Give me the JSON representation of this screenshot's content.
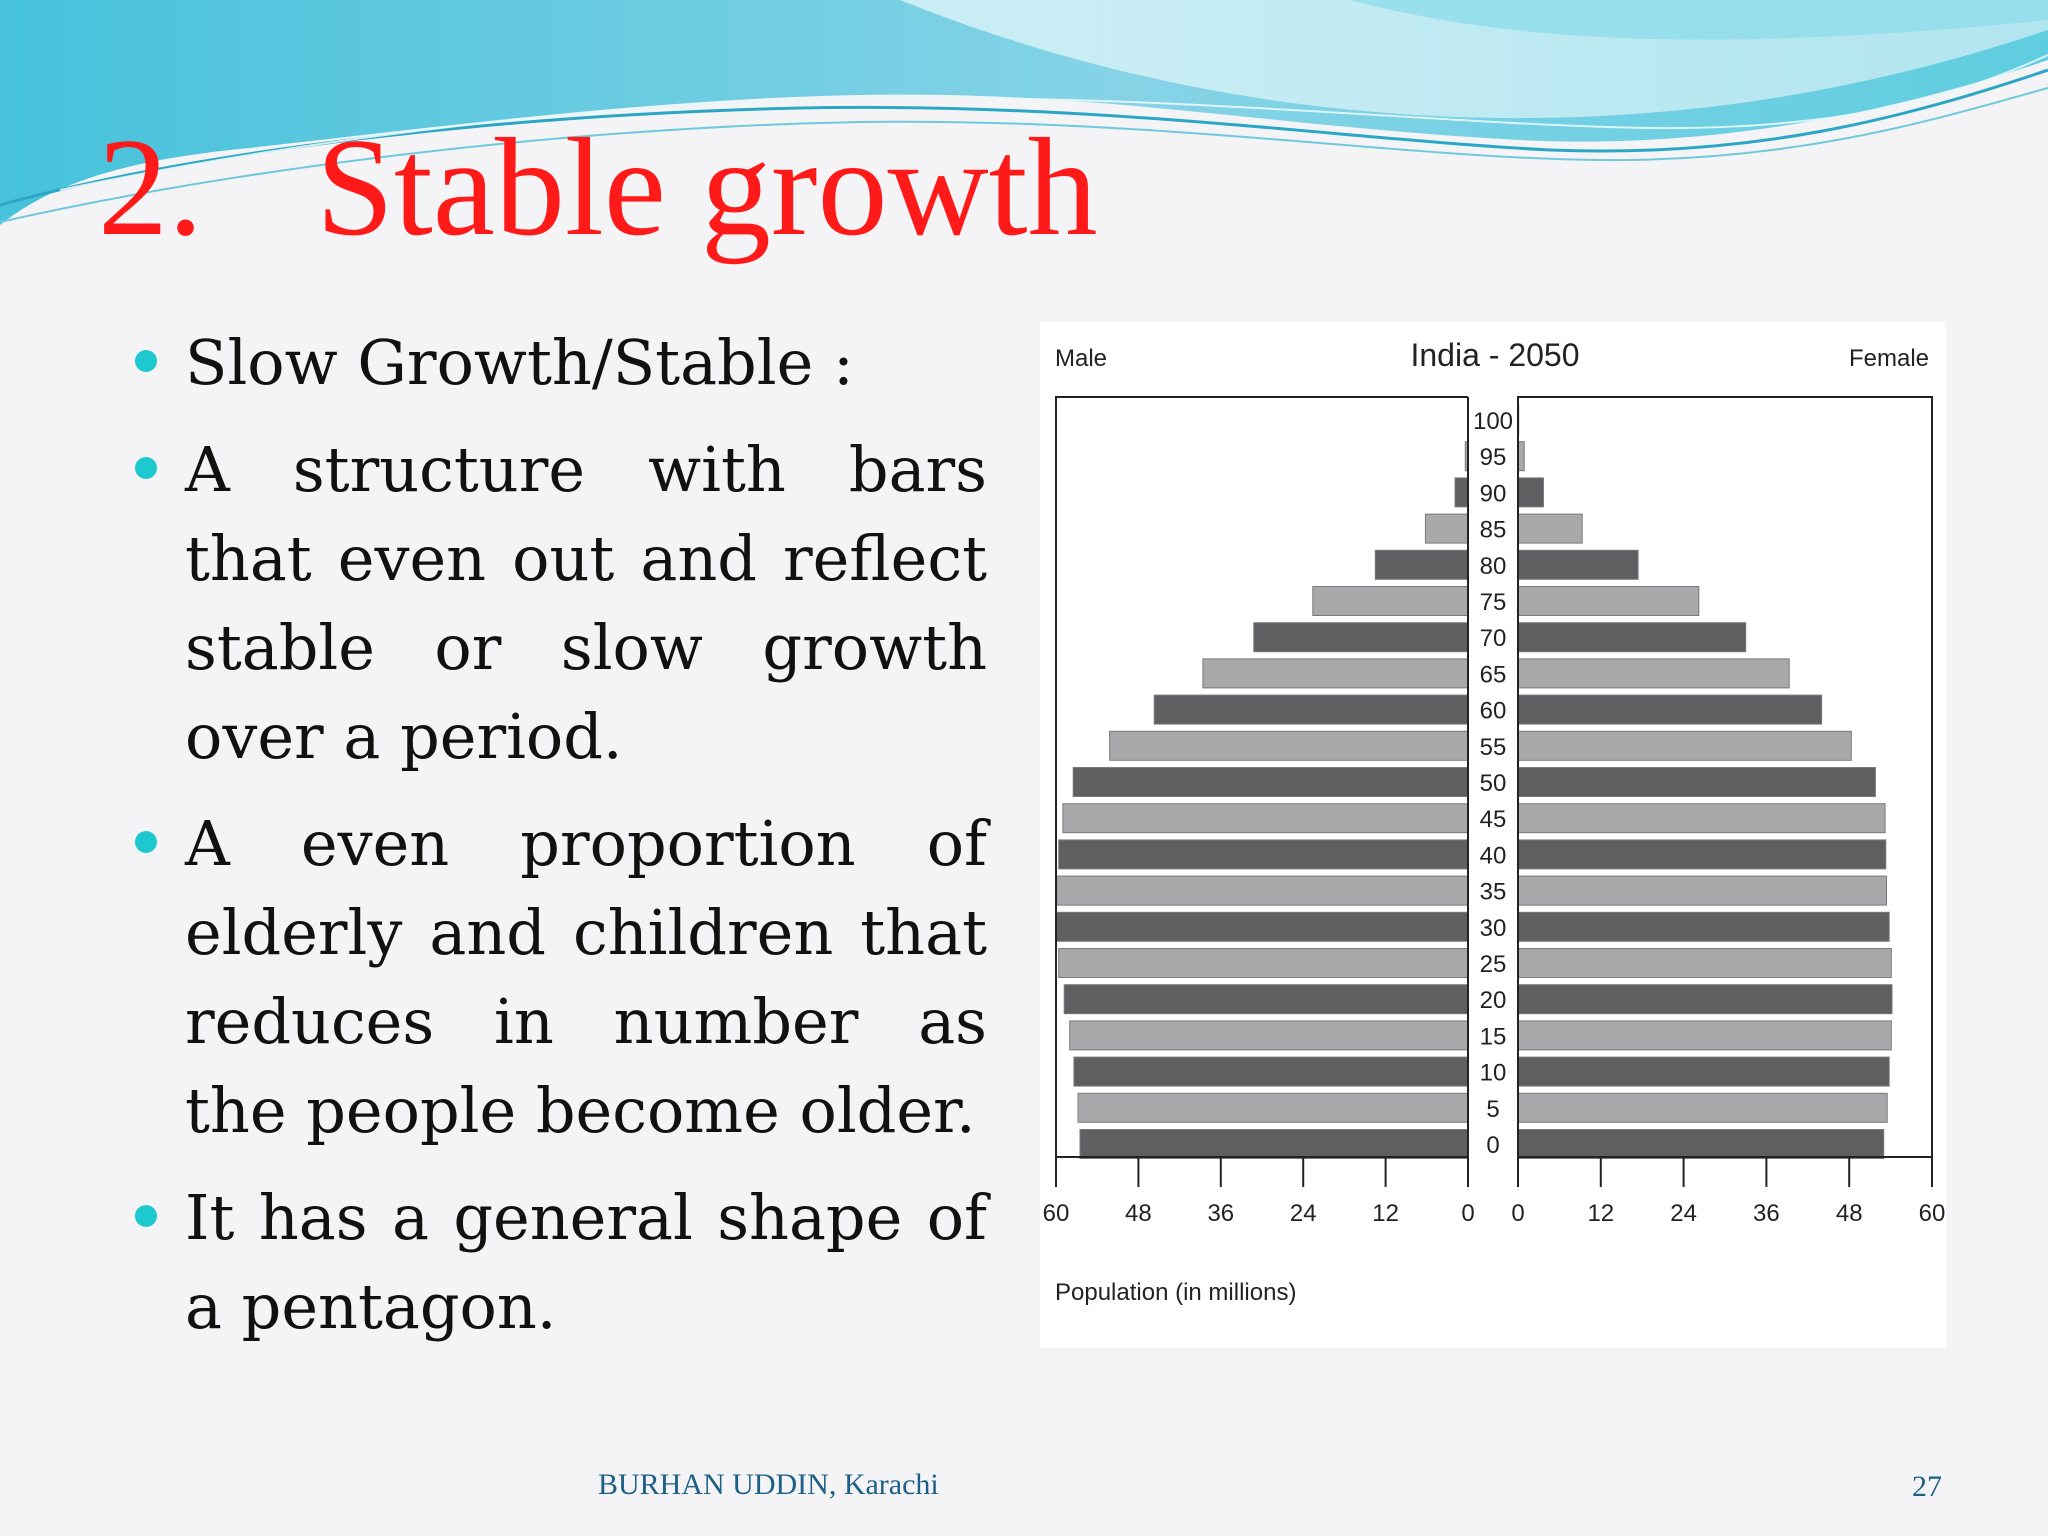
{
  "slide": {
    "title_number": "2.",
    "title_text": "Stable growth",
    "bullets": [
      "Slow Growth/Stable :",
      "A structure with bars that even out and reflect stable or slow growth over a period.",
      "A even proportion of elderly and children that reduces in number as the people become older.",
      "It has a general shape of a pentagon."
    ],
    "footer_author": "BURHAN UDDIN, Karachi",
    "page_number": "27"
  },
  "colors": {
    "title": "#ff1a1a",
    "bullet_dot": "#1ec8cf",
    "footer": "#1d5f86",
    "bar_dark": "#5f5f62",
    "bar_light": "#a9a9ab"
  },
  "chart_data": {
    "type": "bar",
    "orientation": "horizontal",
    "subtype": "population-pyramid",
    "title": "India - 2050",
    "left_label": "Male",
    "right_label": "Female",
    "xlabel": "Population (in millions)",
    "x_ticks_left": [
      "60",
      "48",
      "36",
      "24",
      "12",
      "0"
    ],
    "x_ticks_right": [
      "0",
      "12",
      "24",
      "36",
      "48",
      "60"
    ],
    "xlim": [
      0,
      60
    ],
    "age_groups": [
      "0",
      "5",
      "10",
      "15",
      "20",
      "25",
      "30",
      "35",
      "40",
      "45",
      "50",
      "55",
      "60",
      "65",
      "70",
      "75",
      "80",
      "85",
      "90",
      "95",
      "100"
    ],
    "series": [
      {
        "name": "Male",
        "values": [
          56.5,
          56.8,
          57.4,
          58.0,
          58.8,
          59.6,
          60.0,
          59.9,
          59.6,
          59.0,
          57.5,
          52.2,
          45.7,
          38.6,
          31.2,
          22.6,
          13.5,
          6.2,
          1.9,
          0.4,
          0.05
        ]
      },
      {
        "name": "Female",
        "values": [
          53.0,
          53.5,
          53.8,
          54.1,
          54.2,
          54.1,
          53.8,
          53.4,
          53.3,
          53.2,
          51.8,
          48.3,
          44.0,
          39.3,
          33.0,
          26.2,
          17.4,
          9.3,
          3.7,
          0.9,
          0.1
        ]
      }
    ],
    "grid": false,
    "legend": "none"
  }
}
